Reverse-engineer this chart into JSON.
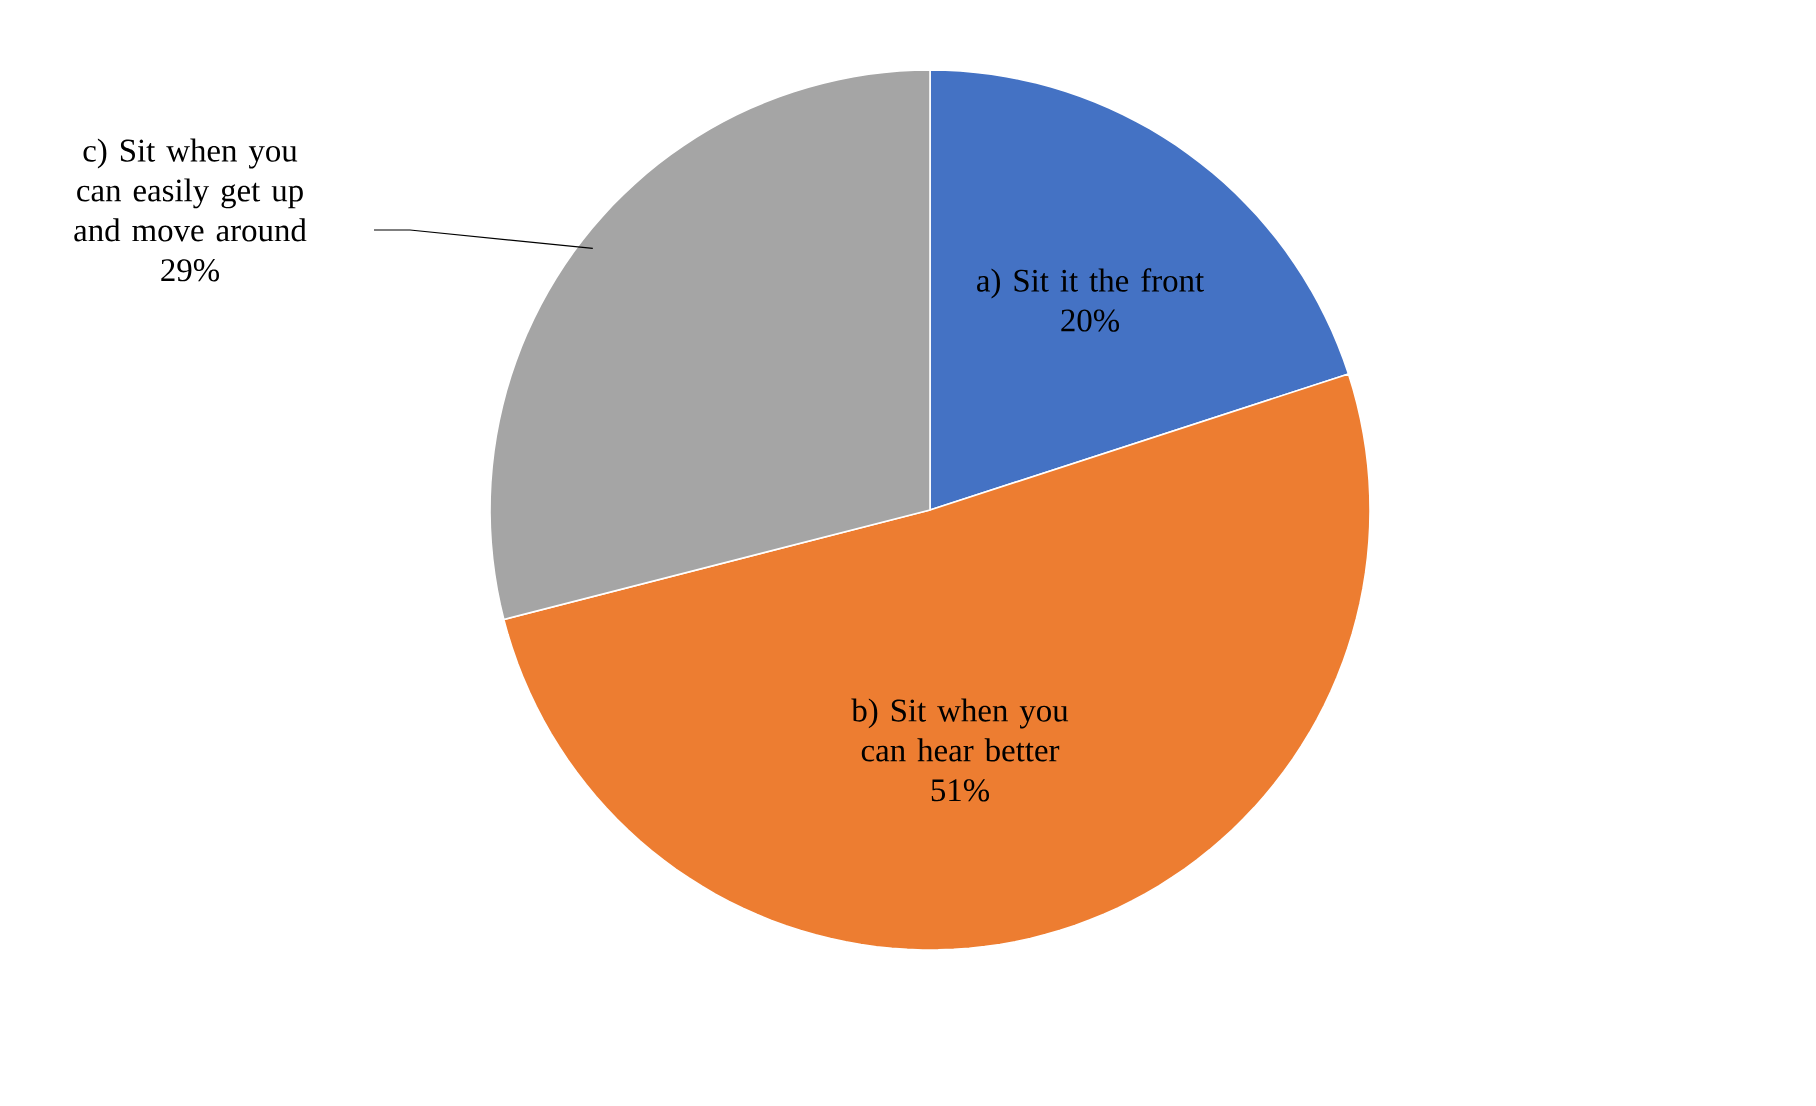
{
  "chart_data": {
    "type": "pie",
    "categories": [
      "a) Sit it the front",
      "b) Sit when you can hear better",
      "c) Sit when you can easily get up and move around"
    ],
    "values": [
      20,
      51,
      29
    ],
    "value_labels": [
      "20%",
      "51%",
      "29%"
    ],
    "colors": [
      "#4472c4",
      "#ed7d31",
      "#a5a5a5"
    ]
  }
}
